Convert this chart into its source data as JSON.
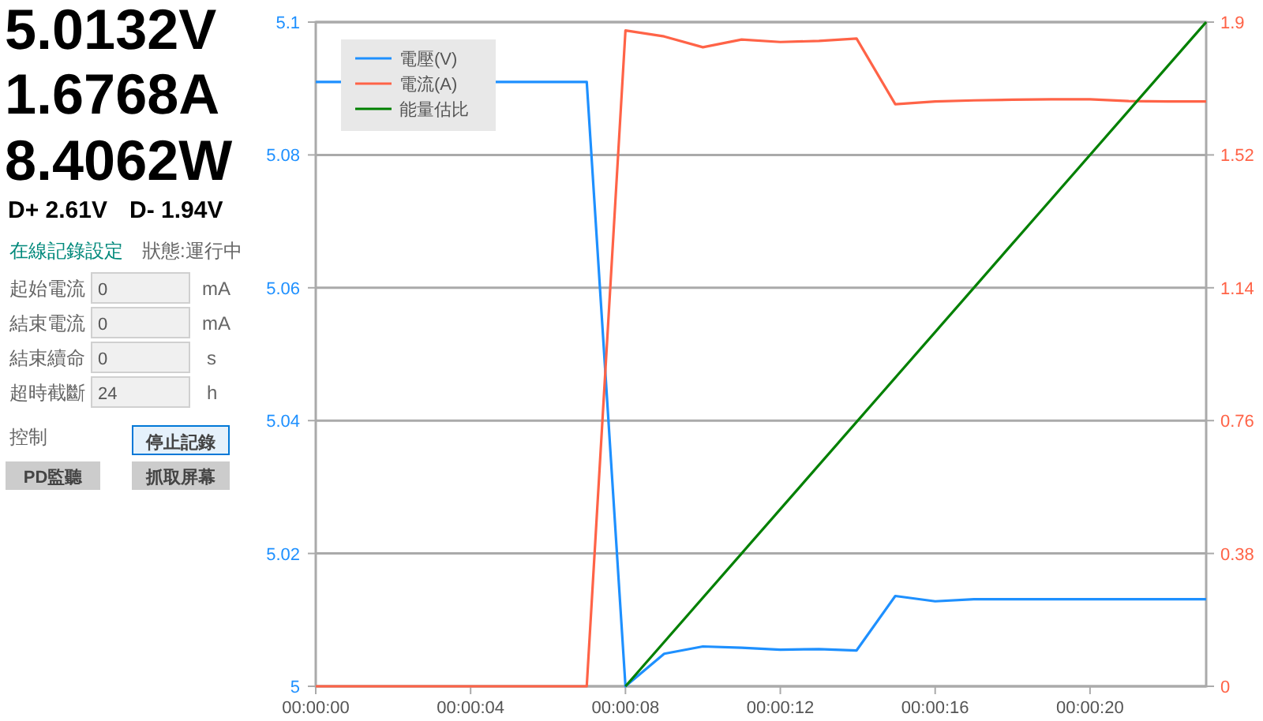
{
  "chart_data": [
    {
      "type": "other",
      "annotations": [
        "5.0132V",
        "1.6768A",
        "8.4062W",
        "D+ 2.61V",
        "D- 1.94V",
        "在線記錄設定",
        "狀態:運行中",
        "起始電流",
        "0",
        "mA",
        "結束電流",
        "0",
        "mA",
        "結束續命",
        "0",
        "s",
        "超時截斷",
        "24",
        "h",
        "控制",
        "停止記錄",
        "PD監聽",
        "抓取屏幕"
      ]
    },
    {
      "type": "line",
      "xlim": [
        0,
        23
      ],
      "xticks": [
        {
          "value": 0,
          "label": "00:00:00"
        },
        {
          "value": 4,
          "label": "00:00:04"
        },
        {
          "value": 8,
          "label": "00:00:08"
        },
        {
          "value": 12,
          "label": "00:00:12"
        },
        {
          "value": 16,
          "label": "00:00:16"
        },
        {
          "value": 20,
          "label": "00:00:20"
        }
      ],
      "ylim": [
        5,
        5.1
      ],
      "yticks": [
        5,
        5.02,
        5.04,
        5.06,
        5.08,
        5.1
      ],
      "y2lim": [
        0,
        1.9
      ],
      "y2ticks": [
        0,
        0.38,
        0.76,
        1.14,
        1.52,
        1.9
      ],
      "grid": "y",
      "legend": "top left",
      "series": [
        {
          "name": "電壓(V)",
          "color": "#1e90ff",
          "x": [
            0,
            7,
            8,
            9,
            10,
            11,
            12,
            13,
            13.97,
            14.97,
            16,
            17,
            18,
            19,
            20,
            21,
            22,
            23
          ],
          "values": [
            5.091,
            5.091,
            5.0,
            5.0049,
            5.006,
            5.0058,
            5.0055,
            5.0056,
            5.0054,
            5.0136,
            5.0128,
            5.0131,
            5.0131,
            5.0131,
            5.0131,
            5.0131,
            5.0131,
            5.0131
          ]
        },
        {
          "name": "電流(A)",
          "color": "#ff6347",
          "axis": "y2",
          "x": [
            0,
            7,
            8,
            9,
            10,
            11,
            12,
            13,
            13.97,
            14.97,
            16,
            17,
            18,
            19,
            20,
            21,
            22,
            23
          ],
          "values": [
            0,
            0,
            1.876,
            1.859,
            1.828,
            1.85,
            1.843,
            1.846,
            1.853,
            1.665,
            1.673,
            1.676,
            1.678,
            1.679,
            1.679,
            1.674,
            1.673,
            1.673
          ]
        },
        {
          "name": "能量估比",
          "color": "#008000",
          "axis": "y2",
          "x": [
            8,
            23
          ],
          "values": [
            0,
            1.9
          ]
        }
      ]
    }
  ]
}
